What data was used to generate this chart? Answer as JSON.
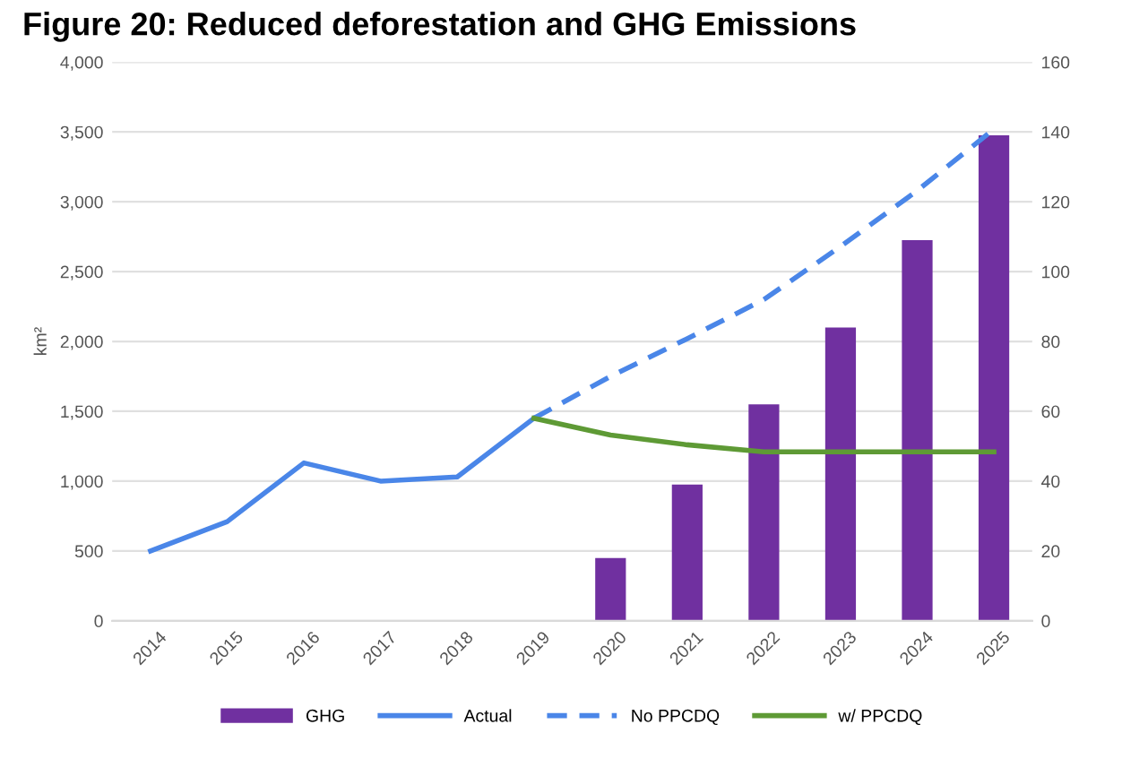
{
  "chart_data": {
    "type": "bar",
    "title": "Figure 20: Reduced deforestation and GHG Emissions",
    "ylabel": "km²",
    "categories": [
      "2014",
      "2015",
      "2016",
      "2017",
      "2018",
      "2019",
      "2020",
      "2021",
      "2022",
      "2023",
      "2024",
      "2025"
    ],
    "series": [
      {
        "name": "GHG",
        "axis": "y2",
        "color": "#7030a0",
        "values": [
          null,
          null,
          null,
          null,
          null,
          null,
          18,
          39,
          62,
          84,
          109,
          139
        ]
      },
      {
        "name": "Actual",
        "type": "line",
        "color": "#4a86e8",
        "line_style": "solid",
        "values": [
          500,
          710,
          1130,
          1000,
          1030,
          1450,
          null,
          null,
          null,
          null,
          null,
          null
        ]
      },
      {
        "name": "No PPCDQ",
        "type": "line",
        "color": "#4a86e8",
        "line_style": "dashed",
        "values": [
          null,
          null,
          null,
          null,
          null,
          1450,
          1750,
          2020,
          2300,
          2680,
          3080,
          3520
        ]
      },
      {
        "name": "w/ PPCDQ",
        "type": "line",
        "color": "#5e9a35",
        "line_style": "solid",
        "values": [
          null,
          null,
          null,
          null,
          null,
          1450,
          1330,
          1260,
          1210,
          1210,
          1210,
          1210
        ]
      }
    ],
    "ylim": [
      0,
      4000
    ],
    "yticks": [
      {
        "value": 0,
        "label": "0"
      },
      {
        "value": 500,
        "label": "500"
      },
      {
        "value": 1000,
        "label": "1,000"
      },
      {
        "value": 1500,
        "label": "1,500"
      },
      {
        "value": 2000,
        "label": "2,000"
      },
      {
        "value": 2500,
        "label": "2,500"
      },
      {
        "value": 3000,
        "label": "3,000"
      },
      {
        "value": 3500,
        "label": "3,500"
      },
      {
        "value": 4000,
        "label": "4,000"
      }
    ],
    "y2lim": [
      0,
      160
    ],
    "y2ticks": [
      0,
      20,
      40,
      60,
      80,
      100,
      120,
      140,
      160
    ],
    "grid": "y",
    "legend": "bottom"
  }
}
